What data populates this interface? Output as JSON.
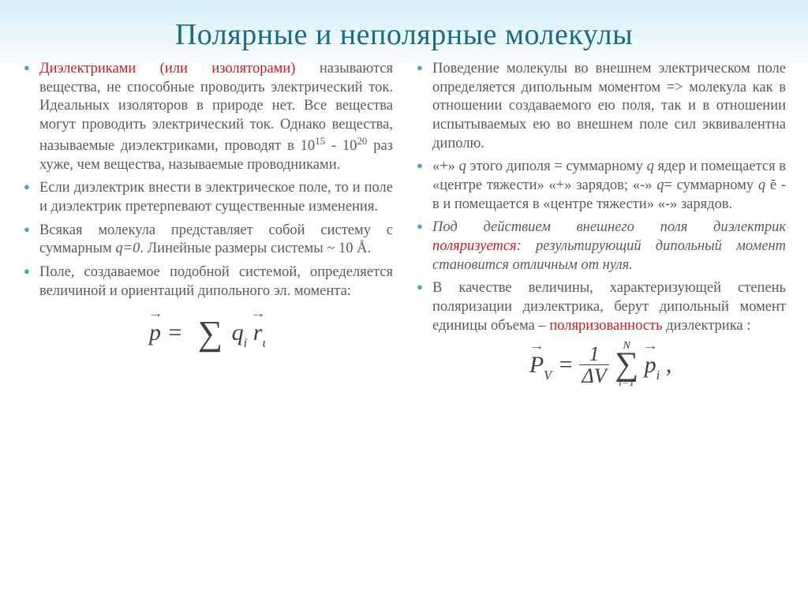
{
  "slide": {
    "title": "Полярные и неполярные молекулы",
    "colors": {
      "title_color": "#1a6a8a",
      "bullet_color": "#3fa8cc",
      "body_text": "#5a5a5a",
      "highlight_red": "#c02020",
      "header_gradient_top": "#d4f0f8",
      "header_gradient_bottom": "#ffffff",
      "formula_color": "#404040"
    },
    "typography": {
      "title_fontsize": 38,
      "body_fontsize": 18.5,
      "formula_fontsize": 30,
      "body_line_height": 1.28
    },
    "left_column": {
      "b1_a": "Диэлектриками (или изоляторами)",
      "b1_b": " называются вещества, не способные проводить электрический ток. Идеальных изоляторов в природе нет. Все вещества могут проводить электрический ток. Однако вещества, называемые диэлектриками, проводят в 10",
      "b1_exp1": "15",
      "b1_c": " - 10",
      "b1_exp2": "20",
      "b1_d": " раз хуже, чем вещества, называемые проводниками.",
      "b2": "Если диэлектрик внести в электрическое поле, то и поле и диэлектрик претерпевают существенные изменения.",
      "b3_a": "Всякая молекула представляет собой систему с суммарным ",
      "b3_i": "q=0",
      "b3_b": ". Линейные размеры системы ~ 10 Å.",
      "b4": "Поле, создаваемое подобной системой, определяется величиной и ориентаций дипольного эл. момента:",
      "formula1": {
        "lhs_vec": "p",
        "eq": " = ",
        "rhs_q": "q",
        "rhs_sub": "i",
        "rhs_vec": "r",
        "rhs_vec_sub": "ι"
      }
    },
    "right_column": {
      "b1": "Поведение молекулы во внешнем электрическом поле определяется дипольным моментом => молекула как в отношении создаваемого ею поля, так и в отношении испытываемых ею во внешнем поле сил эквивалентна диполю.",
      "b2_a": "«+» ",
      "b2_i1": "q",
      "b2_b": " этого диполя = суммарному ",
      "b2_i2": "q",
      "b2_c": " ядер и помещается в «центре тяжести» «+» зарядов; «-» ",
      "b2_i3": "q",
      "b2_d": "= суммарному ",
      "b2_i4": "q",
      "b2_e": " ē - в и помещается в «центре тяжести» «-» зарядов.",
      "b3_a": "Под действием внешнего поля диэлектрик ",
      "b3_red": "поляризуется",
      "b3_b": ": результирующий дипольный момент становится отличным от нуля.",
      "b4_a": "В качестве величины, характеризующей степень поляризации диэлектрика, берут дипольный момент единицы объема – ",
      "b4_red": "поляризованность",
      "b4_b": " диэлектрика :",
      "formula2": {
        "lhs_vec": "P",
        "lhs_sub": "V",
        "eq": " = ",
        "frac_num": "1",
        "frac_den": "ΔV",
        "sum_upper": "N",
        "sum_lower": "i=1",
        "rhs_vec": "p",
        "rhs_sub": "i",
        "tail": " ,"
      }
    }
  }
}
